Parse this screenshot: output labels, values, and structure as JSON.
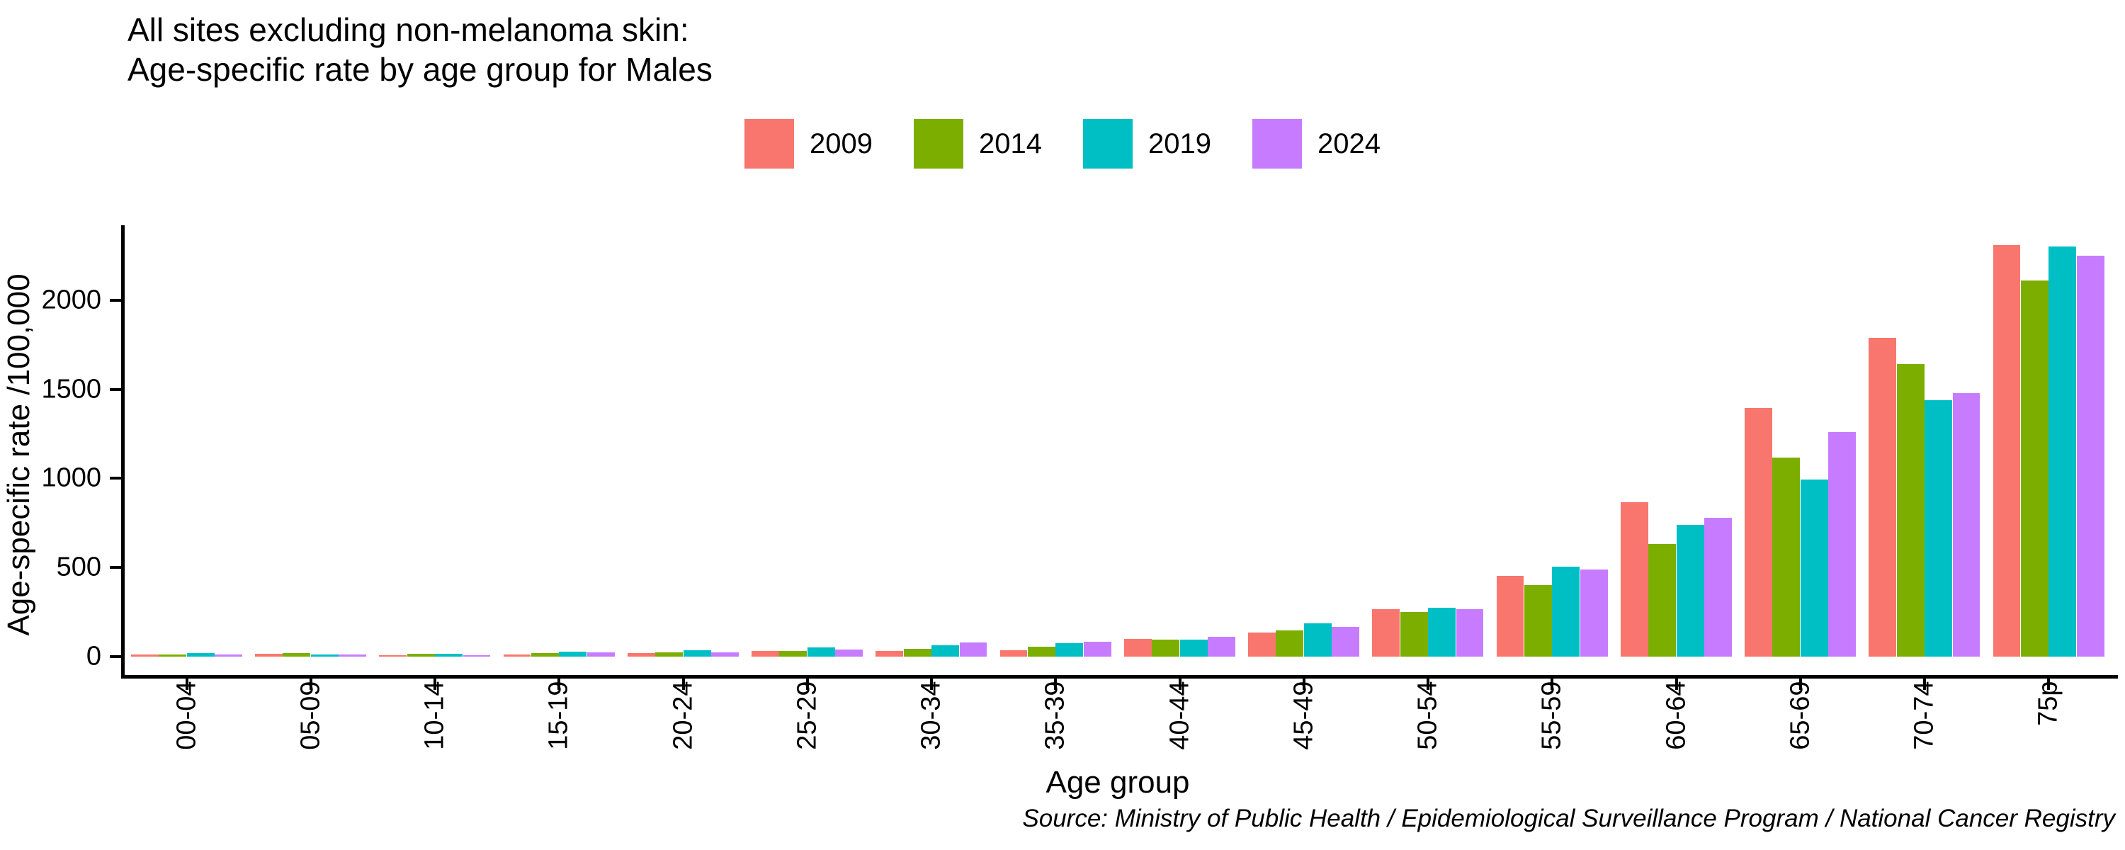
{
  "title": {
    "line1": "All sites excluding non-melanoma skin:",
    "line2": "Age-specific rate by age group for Males"
  },
  "legend": {
    "items": [
      {
        "label": "2009",
        "color": "#F8766D"
      },
      {
        "label": "2014",
        "color": "#7CAE00"
      },
      {
        "label": "2019",
        "color": "#00BFC4"
      },
      {
        "label": "2024",
        "color": "#C77CFF"
      }
    ]
  },
  "chart_data": {
    "type": "bar",
    "title": "All sites excluding non-melanoma skin: Age-specific rate by age group for Males",
    "xlabel": "Age group",
    "ylabel": "Age-specific rate /100,000",
    "categories": [
      "00-04",
      "05-09",
      "10-14",
      "15-19",
      "20-24",
      "25-29",
      "30-34",
      "35-39",
      "40-44",
      "45-49",
      "50-54",
      "55-59",
      "60-64",
      "65-69",
      "70-74",
      "75p"
    ],
    "series": [
      {
        "name": "2009",
        "color": "#F8766D",
        "values": [
          12,
          14,
          9,
          12,
          20,
          33,
          33,
          36,
          100,
          136,
          268,
          452,
          867,
          1393,
          1790,
          2310
        ]
      },
      {
        "name": "2014",
        "color": "#7CAE00",
        "values": [
          11,
          19,
          14,
          21,
          25,
          32,
          44,
          57,
          94,
          146,
          250,
          400,
          630,
          1115,
          1642,
          2110
        ]
      },
      {
        "name": "2019",
        "color": "#00BFC4",
        "values": [
          18,
          12,
          14,
          28,
          34,
          50,
          64,
          74,
          94,
          187,
          275,
          506,
          740,
          995,
          1440,
          2300
        ]
      },
      {
        "name": "2024",
        "color": "#C77CFF",
        "values": [
          13,
          13,
          8,
          22,
          24,
          38,
          78,
          83,
          110,
          168,
          266,
          490,
          778,
          1260,
          1478,
          2250
        ]
      }
    ],
    "y_ticks": [
      0,
      500,
      1000,
      1500,
      2000
    ],
    "ylim": [
      0,
      2420
    ],
    "grid": false,
    "legend_position": "top",
    "x_label_rotation": 90
  },
  "caption": {
    "text": "Source: Ministry of Public Health / Epidemiological Surveillance Program / National Cancer Registry"
  }
}
